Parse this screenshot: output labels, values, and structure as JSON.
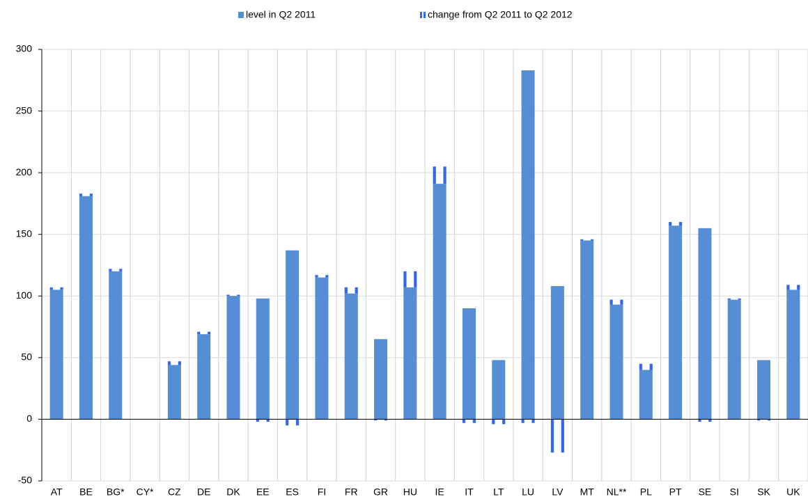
{
  "chart_data": {
    "type": "bar",
    "categories": [
      "AT",
      "BE",
      "BG*",
      "CY*",
      "CZ",
      "DE",
      "DK",
      "EE",
      "ES",
      "FI",
      "FR",
      "GR",
      "HU",
      "IE",
      "IT",
      "LT",
      "LU",
      "LV",
      "MT",
      "NL**",
      "PL",
      "PT",
      "SE",
      "SI",
      "SK",
      "UK"
    ],
    "series": [
      {
        "name": "level in Q2 2011",
        "color": "#558ed5",
        "values": [
          105,
          181,
          120,
          null,
          44,
          69,
          100,
          98,
          137,
          115,
          102,
          65,
          107,
          191,
          90,
          48,
          283,
          108,
          145,
          93,
          40,
          157,
          155,
          97,
          48,
          105
        ]
      },
      {
        "name": "change from Q2 2011 to Q2 2012",
        "color": "#3366ee",
        "values": [
          2,
          2,
          2,
          null,
          3,
          2,
          1,
          -2,
          -5,
          2,
          5,
          -1,
          13,
          14,
          -3,
          -4,
          -3,
          -27,
          1,
          4,
          5,
          3,
          -2,
          1,
          -1,
          4
        ]
      }
    ],
    "ylim": [
      -50,
      300
    ],
    "yticks": [
      -50,
      0,
      50,
      100,
      150,
      200,
      250,
      300
    ],
    "grid": true
  }
}
